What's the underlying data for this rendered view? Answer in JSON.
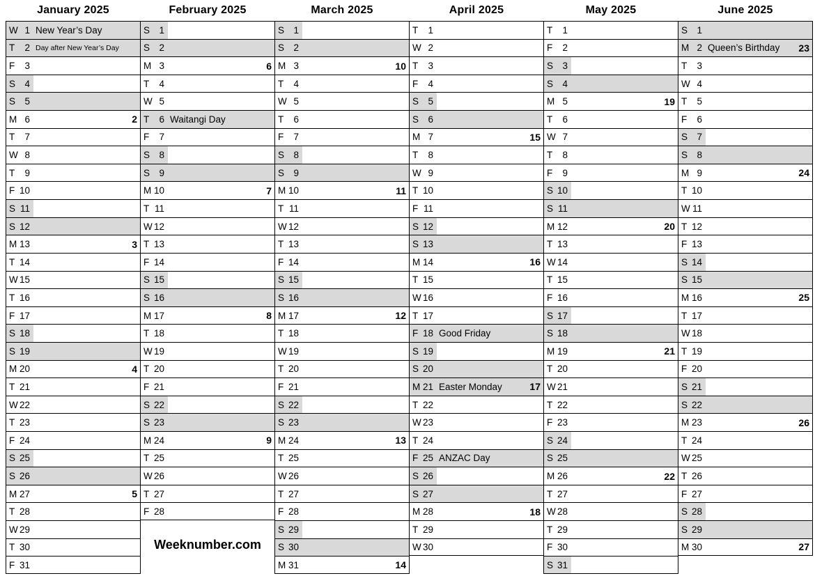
{
  "brand": "Weeknumber.com",
  "colors": {
    "shade": "#d9d9d9",
    "border": "#000000"
  },
  "months": [
    {
      "name": "January 2025",
      "days": [
        {
          "w": "W",
          "d": 1,
          "hol": "New Year’s Day",
          "shade": "full"
        },
        {
          "w": "T",
          "d": 2,
          "hol": "Day after New Year’s Day",
          "small": true,
          "shade": "full"
        },
        {
          "w": "F",
          "d": 3
        },
        {
          "w": "S",
          "d": 4,
          "shade": "band"
        },
        {
          "w": "S",
          "d": 5,
          "shade": "full"
        },
        {
          "w": "M",
          "d": 6,
          "wk": 2
        },
        {
          "w": "T",
          "d": 7
        },
        {
          "w": "W",
          "d": 8
        },
        {
          "w": "T",
          "d": 9
        },
        {
          "w": "F",
          "d": 10
        },
        {
          "w": "S",
          "d": 11,
          "shade": "band"
        },
        {
          "w": "S",
          "d": 12,
          "shade": "full"
        },
        {
          "w": "M",
          "d": 13,
          "wk": 3
        },
        {
          "w": "T",
          "d": 14
        },
        {
          "w": "W",
          "d": 15
        },
        {
          "w": "T",
          "d": 16
        },
        {
          "w": "F",
          "d": 17
        },
        {
          "w": "S",
          "d": 18,
          "shade": "band"
        },
        {
          "w": "S",
          "d": 19,
          "shade": "full"
        },
        {
          "w": "M",
          "d": 20,
          "wk": 4
        },
        {
          "w": "T",
          "d": 21
        },
        {
          "w": "W",
          "d": 22
        },
        {
          "w": "T",
          "d": 23
        },
        {
          "w": "F",
          "d": 24
        },
        {
          "w": "S",
          "d": 25,
          "shade": "band"
        },
        {
          "w": "S",
          "d": 26,
          "shade": "full"
        },
        {
          "w": "M",
          "d": 27,
          "wk": 5
        },
        {
          "w": "T",
          "d": 28
        },
        {
          "w": "W",
          "d": 29
        },
        {
          "w": "T",
          "d": 30
        },
        {
          "w": "F",
          "d": 31
        }
      ]
    },
    {
      "name": "February 2025",
      "days": [
        {
          "w": "S",
          "d": 1,
          "shade": "band"
        },
        {
          "w": "S",
          "d": 2,
          "shade": "full"
        },
        {
          "w": "M",
          "d": 3,
          "wk": 6
        },
        {
          "w": "T",
          "d": 4
        },
        {
          "w": "W",
          "d": 5
        },
        {
          "w": "T",
          "d": 6,
          "hol": "Waitangi Day",
          "shade": "full"
        },
        {
          "w": "F",
          "d": 7
        },
        {
          "w": "S",
          "d": 8,
          "shade": "band"
        },
        {
          "w": "S",
          "d": 9,
          "shade": "full"
        },
        {
          "w": "M",
          "d": 10,
          "wk": 7
        },
        {
          "w": "T",
          "d": 11
        },
        {
          "w": "W",
          "d": 12
        },
        {
          "w": "T",
          "d": 13
        },
        {
          "w": "F",
          "d": 14
        },
        {
          "w": "S",
          "d": 15,
          "shade": "band"
        },
        {
          "w": "S",
          "d": 16,
          "shade": "full"
        },
        {
          "w": "M",
          "d": 17,
          "wk": 8
        },
        {
          "w": "T",
          "d": 18
        },
        {
          "w": "W",
          "d": 19
        },
        {
          "w": "T",
          "d": 20
        },
        {
          "w": "F",
          "d": 21
        },
        {
          "w": "S",
          "d": 22,
          "shade": "band"
        },
        {
          "w": "S",
          "d": 23,
          "shade": "full"
        },
        {
          "w": "M",
          "d": 24,
          "wk": 9
        },
        {
          "w": "T",
          "d": 25
        },
        {
          "w": "W",
          "d": 26
        },
        {
          "w": "T",
          "d": 27
        },
        {
          "w": "F",
          "d": 28
        }
      ]
    },
    {
      "name": "March 2025",
      "days": [
        {
          "w": "S",
          "d": 1,
          "shade": "band"
        },
        {
          "w": "S",
          "d": 2,
          "shade": "full"
        },
        {
          "w": "M",
          "d": 3,
          "wk": 10
        },
        {
          "w": "T",
          "d": 4
        },
        {
          "w": "W",
          "d": 5
        },
        {
          "w": "T",
          "d": 6
        },
        {
          "w": "F",
          "d": 7
        },
        {
          "w": "S",
          "d": 8,
          "shade": "band"
        },
        {
          "w": "S",
          "d": 9,
          "shade": "full"
        },
        {
          "w": "M",
          "d": 10,
          "wk": 11
        },
        {
          "w": "T",
          "d": 11
        },
        {
          "w": "W",
          "d": 12
        },
        {
          "w": "T",
          "d": 13
        },
        {
          "w": "F",
          "d": 14
        },
        {
          "w": "S",
          "d": 15,
          "shade": "band"
        },
        {
          "w": "S",
          "d": 16,
          "shade": "full"
        },
        {
          "w": "M",
          "d": 17,
          "wk": 12
        },
        {
          "w": "T",
          "d": 18
        },
        {
          "w": "W",
          "d": 19
        },
        {
          "w": "T",
          "d": 20
        },
        {
          "w": "F",
          "d": 21
        },
        {
          "w": "S",
          "d": 22,
          "shade": "band"
        },
        {
          "w": "S",
          "d": 23,
          "shade": "full"
        },
        {
          "w": "M",
          "d": 24,
          "wk": 13
        },
        {
          "w": "T",
          "d": 25
        },
        {
          "w": "W",
          "d": 26
        },
        {
          "w": "T",
          "d": 27
        },
        {
          "w": "F",
          "d": 28
        },
        {
          "w": "S",
          "d": 29,
          "shade": "band"
        },
        {
          "w": "S",
          "d": 30,
          "shade": "full"
        },
        {
          "w": "M",
          "d": 31,
          "wk": 14
        }
      ]
    },
    {
      "name": "April 2025",
      "days": [
        {
          "w": "T",
          "d": 1
        },
        {
          "w": "W",
          "d": 2
        },
        {
          "w": "T",
          "d": 3
        },
        {
          "w": "F",
          "d": 4
        },
        {
          "w": "S",
          "d": 5,
          "shade": "band"
        },
        {
          "w": "S",
          "d": 6,
          "shade": "full"
        },
        {
          "w": "M",
          "d": 7,
          "wk": 15
        },
        {
          "w": "T",
          "d": 8
        },
        {
          "w": "W",
          "d": 9
        },
        {
          "w": "T",
          "d": 10
        },
        {
          "w": "F",
          "d": 11
        },
        {
          "w": "S",
          "d": 12,
          "shade": "band"
        },
        {
          "w": "S",
          "d": 13,
          "shade": "full"
        },
        {
          "w": "M",
          "d": 14,
          "wk": 16
        },
        {
          "w": "T",
          "d": 15
        },
        {
          "w": "W",
          "d": 16
        },
        {
          "w": "T",
          "d": 17
        },
        {
          "w": "F",
          "d": 18,
          "hol": "Good Friday",
          "shade": "full"
        },
        {
          "w": "S",
          "d": 19,
          "shade": "band"
        },
        {
          "w": "S",
          "d": 20,
          "shade": "full"
        },
        {
          "w": "M",
          "d": 21,
          "hol": "Easter Monday",
          "shade": "full",
          "wk": 17
        },
        {
          "w": "T",
          "d": 22
        },
        {
          "w": "W",
          "d": 23
        },
        {
          "w": "T",
          "d": 24
        },
        {
          "w": "F",
          "d": 25,
          "hol": "ANZAC Day",
          "shade": "full"
        },
        {
          "w": "S",
          "d": 26,
          "shade": "band"
        },
        {
          "w": "S",
          "d": 27,
          "shade": "full"
        },
        {
          "w": "M",
          "d": 28,
          "wk": 18
        },
        {
          "w": "T",
          "d": 29
        },
        {
          "w": "W",
          "d": 30
        }
      ]
    },
    {
      "name": "May 2025",
      "days": [
        {
          "w": "T",
          "d": 1
        },
        {
          "w": "F",
          "d": 2
        },
        {
          "w": "S",
          "d": 3,
          "shade": "band"
        },
        {
          "w": "S",
          "d": 4,
          "shade": "full"
        },
        {
          "w": "M",
          "d": 5,
          "wk": 19
        },
        {
          "w": "T",
          "d": 6
        },
        {
          "w": "W",
          "d": 7
        },
        {
          "w": "T",
          "d": 8
        },
        {
          "w": "F",
          "d": 9
        },
        {
          "w": "S",
          "d": 10,
          "shade": "band"
        },
        {
          "w": "S",
          "d": 11,
          "shade": "full"
        },
        {
          "w": "M",
          "d": 12,
          "wk": 20
        },
        {
          "w": "T",
          "d": 13
        },
        {
          "w": "W",
          "d": 14
        },
        {
          "w": "T",
          "d": 15
        },
        {
          "w": "F",
          "d": 16
        },
        {
          "w": "S",
          "d": 17,
          "shade": "band"
        },
        {
          "w": "S",
          "d": 18,
          "shade": "full"
        },
        {
          "w": "M",
          "d": 19,
          "wk": 21
        },
        {
          "w": "T",
          "d": 20
        },
        {
          "w": "W",
          "d": 21
        },
        {
          "w": "T",
          "d": 22
        },
        {
          "w": "F",
          "d": 23
        },
        {
          "w": "S",
          "d": 24,
          "shade": "band"
        },
        {
          "w": "S",
          "d": 25,
          "shade": "full"
        },
        {
          "w": "M",
          "d": 26,
          "wk": 22
        },
        {
          "w": "T",
          "d": 27
        },
        {
          "w": "W",
          "d": 28
        },
        {
          "w": "T",
          "d": 29
        },
        {
          "w": "F",
          "d": 30
        },
        {
          "w": "S",
          "d": 31,
          "shade": "band"
        }
      ]
    },
    {
      "name": "June 2025",
      "days": [
        {
          "w": "S",
          "d": 1,
          "shade": "full"
        },
        {
          "w": "M",
          "d": 2,
          "hol": "Queen’s Birthday",
          "shade": "full",
          "wk": 23
        },
        {
          "w": "T",
          "d": 3
        },
        {
          "w": "W",
          "d": 4
        },
        {
          "w": "T",
          "d": 5
        },
        {
          "w": "F",
          "d": 6
        },
        {
          "w": "S",
          "d": 7,
          "shade": "band"
        },
        {
          "w": "S",
          "d": 8,
          "shade": "full"
        },
        {
          "w": "M",
          "d": 9,
          "wk": 24
        },
        {
          "w": "T",
          "d": 10
        },
        {
          "w": "W",
          "d": 11
        },
        {
          "w": "T",
          "d": 12
        },
        {
          "w": "F",
          "d": 13
        },
        {
          "w": "S",
          "d": 14,
          "shade": "band"
        },
        {
          "w": "S",
          "d": 15,
          "shade": "full"
        },
        {
          "w": "M",
          "d": 16,
          "wk": 25
        },
        {
          "w": "T",
          "d": 17
        },
        {
          "w": "W",
          "d": 18
        },
        {
          "w": "T",
          "d": 19
        },
        {
          "w": "F",
          "d": 20
        },
        {
          "w": "S",
          "d": 21,
          "shade": "band"
        },
        {
          "w": "S",
          "d": 22,
          "shade": "full"
        },
        {
          "w": "M",
          "d": 23,
          "wk": 26
        },
        {
          "w": "T",
          "d": 24
        },
        {
          "w": "W",
          "d": 25
        },
        {
          "w": "T",
          "d": 26
        },
        {
          "w": "F",
          "d": 27
        },
        {
          "w": "S",
          "d": 28,
          "shade": "band"
        },
        {
          "w": "S",
          "d": 29,
          "shade": "full"
        },
        {
          "w": "M",
          "d": 30,
          "wk": 27
        }
      ]
    }
  ]
}
